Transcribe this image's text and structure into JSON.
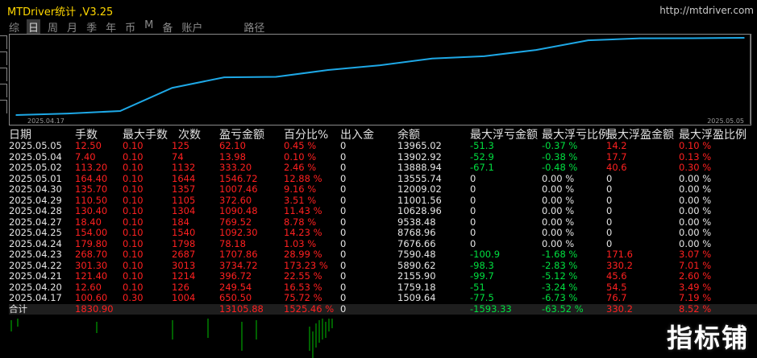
{
  "header": {
    "title": "MTDriver统计 ,V3.25",
    "url": "http://mtdriver.com"
  },
  "tabs": [
    {
      "label": "综",
      "active": false
    },
    {
      "label": "日",
      "active": true
    },
    {
      "label": "周",
      "active": false
    },
    {
      "label": "月",
      "active": false
    },
    {
      "label": "季",
      "active": false
    },
    {
      "label": "年",
      "active": false
    },
    {
      "label": "币",
      "active": false
    },
    {
      "label": "M",
      "active": false
    },
    {
      "label": "备",
      "active": false
    },
    {
      "label": "账户",
      "active": false
    },
    {
      "label": "路径",
      "active": false
    }
  ],
  "chart": {
    "x_start": "2025.04.17",
    "x_end": "2025.05.05",
    "line_color": "#1ea8e6"
  },
  "chart_data": {
    "type": "line",
    "x": [
      "2025.04.17",
      "2025.04.20",
      "2025.04.21",
      "2025.04.22",
      "2025.04.23",
      "2025.04.24",
      "2025.04.25",
      "2025.04.27",
      "2025.04.28",
      "2025.04.29",
      "2025.04.30",
      "2025.05.01",
      "2025.05.02",
      "2025.05.04",
      "2025.05.05"
    ],
    "series": [
      {
        "values": [
          1509.64,
          1759.18,
          2155.9,
          5890.62,
          7590.48,
          7676.66,
          8768.96,
          9538.48,
          10628.96,
          11001.56,
          12009.02,
          13555.74,
          13888.94,
          13902.92,
          13965.02
        ]
      }
    ]
  },
  "table": {
    "headers": [
      "日期",
      "手数",
      "最大手数",
      "次数",
      "盈亏金额",
      "百分比%",
      "出入金",
      "余额",
      "最大浮亏金额",
      "最大浮亏比例",
      "最大浮盈金额",
      "最大浮盈比例"
    ],
    "rows": [
      {
        "date": "2025.05.05",
        "lots": "12.50",
        "maxl": "0.10",
        "cnt": "125",
        "pl": "62.10",
        "pct": "0.45 %",
        "io": "0",
        "bal": "13965.02",
        "mfa": "-51.3",
        "mfr": "-0.37 %",
        "mga": "14.2",
        "mgr": "0.10 %",
        "mfa_c": "green",
        "mfr_c": "green",
        "mga_c": "red",
        "mgr_c": "red"
      },
      {
        "date": "2025.05.04",
        "lots": "7.40",
        "maxl": "0.10",
        "cnt": "74",
        "pl": "13.98",
        "pct": "0.10 %",
        "io": "0",
        "bal": "13902.92",
        "mfa": "-52.9",
        "mfr": "-0.38 %",
        "mga": "17.7",
        "mgr": "0.13 %",
        "mfa_c": "green",
        "mfr_c": "green",
        "mga_c": "red",
        "mgr_c": "red"
      },
      {
        "date": "2025.05.02",
        "lots": "113.20",
        "maxl": "0.10",
        "cnt": "1132",
        "pl": "333.20",
        "pct": "2.46 %",
        "io": "0",
        "bal": "13888.94",
        "mfa": "-67.1",
        "mfr": "-0.48 %",
        "mga": "40.6",
        "mgr": "0.30 %",
        "mfa_c": "green",
        "mfr_c": "green",
        "mga_c": "red",
        "mgr_c": "red"
      },
      {
        "date": "2025.05.01",
        "lots": "164.40",
        "maxl": "0.10",
        "cnt": "1644",
        "pl": "1546.72",
        "pct": "12.88 %",
        "io": "0",
        "bal": "13555.74",
        "mfa": "0",
        "mfr": "0.00 %",
        "mga": "0",
        "mgr": "0.00 %",
        "mfa_c": "white",
        "mfr_c": "white",
        "mga_c": "white",
        "mgr_c": "white"
      },
      {
        "date": "2025.04.30",
        "lots": "135.70",
        "maxl": "0.10",
        "cnt": "1357",
        "pl": "1007.46",
        "pct": "9.16 %",
        "io": "0",
        "bal": "12009.02",
        "mfa": "0",
        "mfr": "0.00 %",
        "mga": "0",
        "mgr": "0.00 %",
        "mfa_c": "white",
        "mfr_c": "white",
        "mga_c": "white",
        "mgr_c": "white"
      },
      {
        "date": "2025.04.29",
        "lots": "110.50",
        "maxl": "0.10",
        "cnt": "1105",
        "pl": "372.60",
        "pct": "3.51 %",
        "io": "0",
        "bal": "11001.56",
        "mfa": "0",
        "mfr": "0.00 %",
        "mga": "0",
        "mgr": "0.00 %",
        "mfa_c": "white",
        "mfr_c": "white",
        "mga_c": "white",
        "mgr_c": "white"
      },
      {
        "date": "2025.04.28",
        "lots": "130.40",
        "maxl": "0.10",
        "cnt": "1304",
        "pl": "1090.48",
        "pct": "11.43 %",
        "io": "0",
        "bal": "10628.96",
        "mfa": "0",
        "mfr": "0.00 %",
        "mga": "0",
        "mgr": "0.00 %",
        "mfa_c": "white",
        "mfr_c": "white",
        "mga_c": "white",
        "mgr_c": "white"
      },
      {
        "date": "2025.04.27",
        "lots": "18.40",
        "maxl": "0.10",
        "cnt": "184",
        "pl": "769.52",
        "pct": "8.78 %",
        "io": "0",
        "bal": "9538.48",
        "mfa": "0",
        "mfr": "0.00 %",
        "mga": "0",
        "mgr": "0.00 %",
        "mfa_c": "white",
        "mfr_c": "white",
        "mga_c": "white",
        "mgr_c": "white"
      },
      {
        "date": "2025.04.25",
        "lots": "154.00",
        "maxl": "0.10",
        "cnt": "1540",
        "pl": "1092.30",
        "pct": "14.23 %",
        "io": "0",
        "bal": "8768.96",
        "mfa": "0",
        "mfr": "0.00 %",
        "mga": "0",
        "mgr": "0.00 %",
        "mfa_c": "white",
        "mfr_c": "white",
        "mga_c": "white",
        "mgr_c": "white"
      },
      {
        "date": "2025.04.24",
        "lots": "179.80",
        "maxl": "0.10",
        "cnt": "1798",
        "pl": "78.18",
        "pct": "1.03 %",
        "io": "0",
        "bal": "7676.66",
        "mfa": "0",
        "mfr": "0.00 %",
        "mga": "0",
        "mgr": "0.00 %",
        "mfa_c": "white",
        "mfr_c": "white",
        "mga_c": "white",
        "mgr_c": "white"
      },
      {
        "date": "2025.04.23",
        "lots": "268.70",
        "maxl": "0.10",
        "cnt": "2687",
        "pl": "1707.86",
        "pct": "28.99 %",
        "io": "0",
        "bal": "7590.48",
        "mfa": "-100.9",
        "mfr": "-1.68 %",
        "mga": "171.6",
        "mgr": "3.07 %",
        "mfa_c": "green",
        "mfr_c": "green",
        "mga_c": "red",
        "mgr_c": "red"
      },
      {
        "date": "2025.04.22",
        "lots": "301.30",
        "maxl": "0.10",
        "cnt": "3013",
        "pl": "3734.72",
        "pct": "173.23 %",
        "io": "0",
        "bal": "5890.62",
        "mfa": "-98.3",
        "mfr": "-2.83 %",
        "mga": "330.2",
        "mgr": "7.01 %",
        "mfa_c": "green",
        "mfr_c": "green",
        "mga_c": "red",
        "mgr_c": "red"
      },
      {
        "date": "2025.04.21",
        "lots": "121.40",
        "maxl": "0.10",
        "cnt": "1214",
        "pl": "396.72",
        "pct": "22.55 %",
        "io": "0",
        "bal": "2155.90",
        "mfa": "-99.7",
        "mfr": "-5.12 %",
        "mga": "45.6",
        "mgr": "2.60 %",
        "mfa_c": "green",
        "mfr_c": "green",
        "mga_c": "red",
        "mgr_c": "red"
      },
      {
        "date": "2025.04.20",
        "lots": "12.60",
        "maxl": "0.10",
        "cnt": "126",
        "pl": "249.54",
        "pct": "16.53 %",
        "io": "0",
        "bal": "1759.18",
        "mfa": "-51",
        "mfr": "-3.24 %",
        "mga": "54.5",
        "mgr": "3.49 %",
        "mfa_c": "green",
        "mfr_c": "green",
        "mga_c": "red",
        "mgr_c": "red"
      },
      {
        "date": "2025.04.17",
        "lots": "100.60",
        "maxl": "0.30",
        "cnt": "1004",
        "pl": "650.50",
        "pct": "75.72 %",
        "io": "0",
        "bal": "1509.64",
        "mfa": "-77.5",
        "mfr": "-6.73 %",
        "mga": "76.7",
        "mgr": "7.19 %",
        "mfa_c": "green",
        "mfr_c": "green",
        "mga_c": "red",
        "mgr_c": "red"
      }
    ],
    "total": {
      "label": "合计",
      "lots": "1830.90",
      "pl": "13105.88",
      "pct": "1525.46 %",
      "io": "0",
      "mfa": "-1593.33",
      "mfr": "-63.52 %",
      "mga": "330.2",
      "mgr": "8.52 %"
    }
  },
  "watermark": "指标铺",
  "colors": {
    "profit": "#ff2020",
    "drawdown": "#00e040",
    "title": "#ffd700",
    "line": "#1ea8e6"
  }
}
